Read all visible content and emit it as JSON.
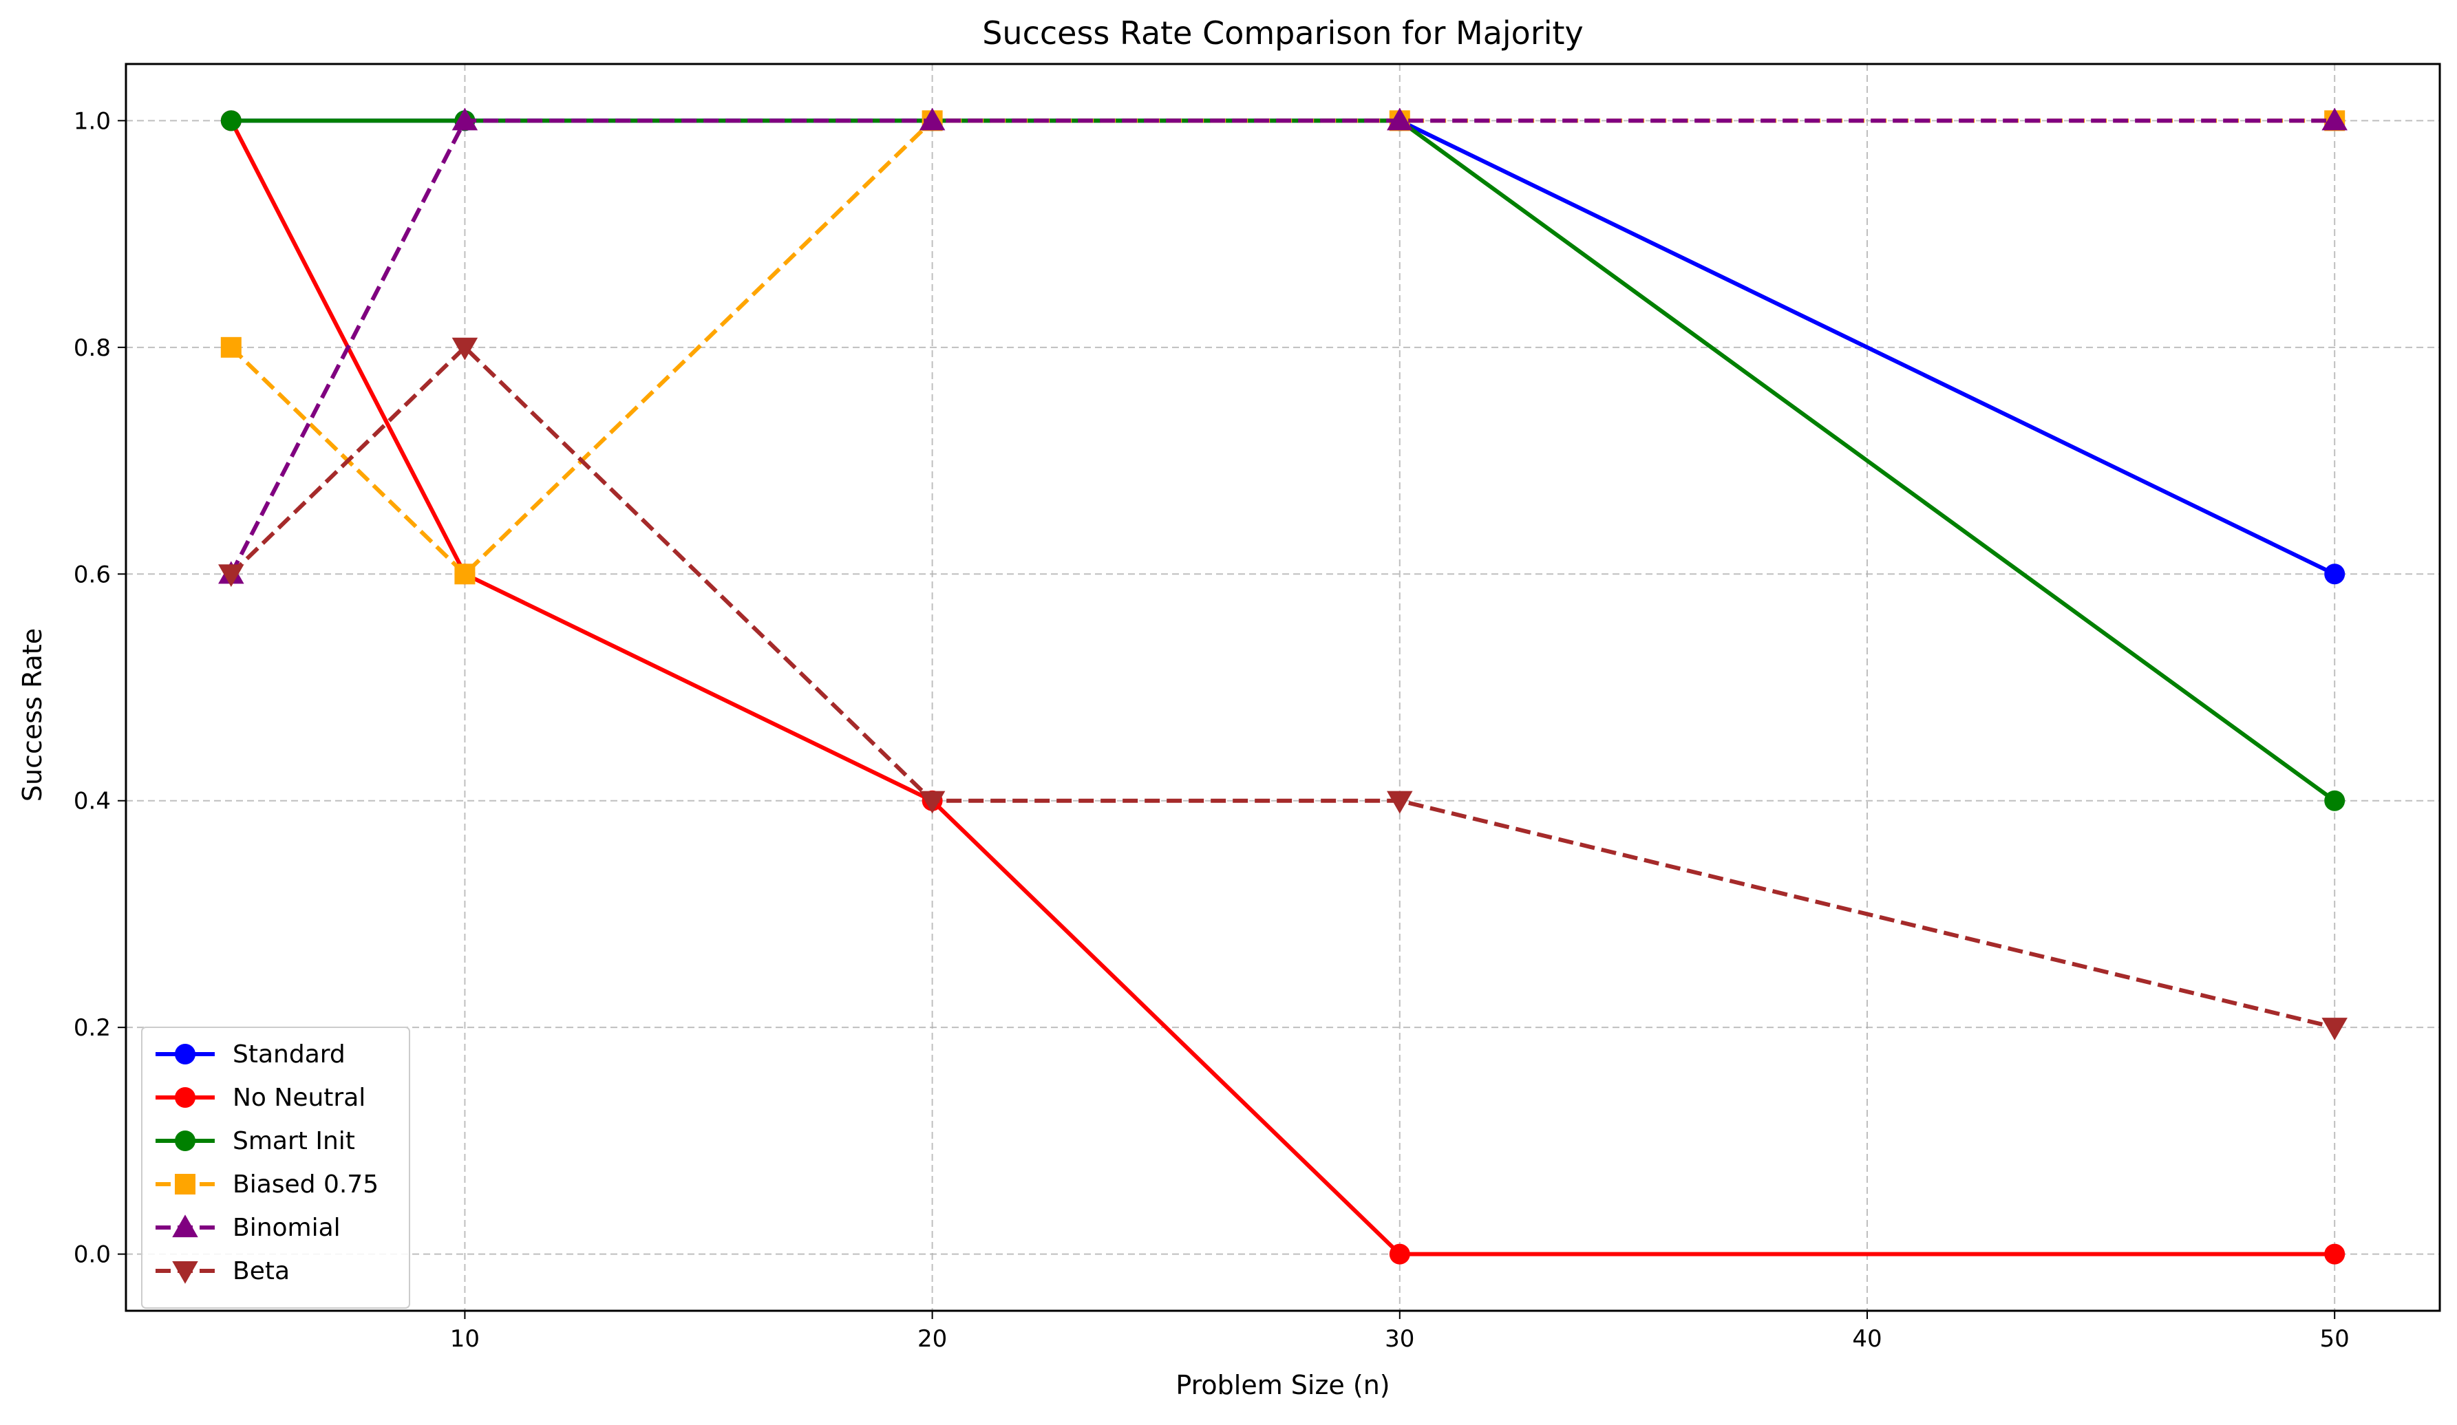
{
  "chart_data": {
    "type": "line",
    "title": "Success Rate Comparison for Majority",
    "xlabel": "Problem Size (n)",
    "ylabel": "Success Rate",
    "x": [
      5,
      10,
      20,
      30,
      50
    ],
    "xlim": [
      2.75,
      52.25
    ],
    "ylim": [
      -0.05,
      1.05
    ],
    "xticks": [
      10,
      20,
      30,
      40,
      50
    ],
    "xtick_labels": [
      "10",
      "20",
      "30",
      "40",
      "50"
    ],
    "yticks": [
      0.0,
      0.2,
      0.4,
      0.6,
      0.8,
      1.0
    ],
    "ytick_labels": [
      "0.0",
      "0.2",
      "0.4",
      "0.6",
      "0.8",
      "1.0"
    ],
    "grid": true,
    "legend_position": "lower-left",
    "series": [
      {
        "name": "Standard",
        "values": [
          1.0,
          1.0,
          1.0,
          1.0,
          0.6
        ],
        "color": "#0000ff",
        "linestyle": "solid",
        "marker": "circle"
      },
      {
        "name": "No Neutral",
        "values": [
          1.0,
          0.6,
          0.4,
          0.0,
          0.0
        ],
        "color": "#ff0000",
        "linestyle": "solid",
        "marker": "circle"
      },
      {
        "name": "Smart Init",
        "values": [
          1.0,
          1.0,
          1.0,
          1.0,
          0.4
        ],
        "color": "#008000",
        "linestyle": "solid",
        "marker": "circle"
      },
      {
        "name": "Biased 0.75",
        "values": [
          0.8,
          0.6,
          1.0,
          1.0,
          1.0
        ],
        "color": "#ffa500",
        "linestyle": "dashed",
        "marker": "square"
      },
      {
        "name": "Binomial",
        "values": [
          0.6,
          1.0,
          1.0,
          1.0,
          1.0
        ],
        "color": "#800080",
        "linestyle": "dashed",
        "marker": "triangle-up"
      },
      {
        "name": "Beta",
        "values": [
          0.6,
          0.8,
          0.4,
          0.4,
          0.2
        ],
        "color": "#a52a2a",
        "linestyle": "dashed",
        "marker": "triangle-down"
      }
    ]
  }
}
